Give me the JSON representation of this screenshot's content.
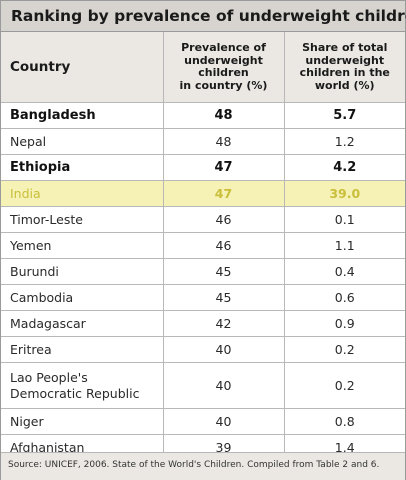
{
  "chart_data": {
    "type": "table",
    "title": "Ranking by prevalence of underweight children",
    "columns": [
      "Country",
      "Prevalence of underweight children in country (%)",
      "Share of total underweight children in the world (%)"
    ],
    "column_header_lines": {
      "prevalence": [
        "Prevalence of",
        "underweight",
        "children",
        "in country (%)"
      ],
      "share": [
        "Share of total",
        "underweight",
        "children in the",
        "world (%)"
      ]
    },
    "rows": [
      {
        "country": "Bangladesh",
        "country_lines": [
          "Bangladesh"
        ],
        "prevalence": "48",
        "share": "5.7",
        "style": "bold"
      },
      {
        "country": "Nepal",
        "country_lines": [
          "Nepal"
        ],
        "prevalence": "48",
        "share": "1.2",
        "style": "normal"
      },
      {
        "country": "Ethiopia",
        "country_lines": [
          "Ethiopia"
        ],
        "prevalence": "47",
        "share": "4.2",
        "style": "bold"
      },
      {
        "country": "India",
        "country_lines": [
          "India"
        ],
        "prevalence": "47",
        "share": "39.0",
        "style": "highlight"
      },
      {
        "country": "Timor-Leste",
        "country_lines": [
          "Timor-Leste"
        ],
        "prevalence": "46",
        "share": "0.1",
        "style": "normal"
      },
      {
        "country": "Yemen",
        "country_lines": [
          "Yemen"
        ],
        "prevalence": "46",
        "share": "1.1",
        "style": "normal"
      },
      {
        "country": "Burundi",
        "country_lines": [
          "Burundi"
        ],
        "prevalence": "45",
        "share": "0.4",
        "style": "normal"
      },
      {
        "country": "Cambodia",
        "country_lines": [
          "Cambodia"
        ],
        "prevalence": "45",
        "share": "0.6",
        "style": "normal"
      },
      {
        "country": "Madagascar",
        "country_lines": [
          "Madagascar"
        ],
        "prevalence": "42",
        "share": "0.9",
        "style": "normal"
      },
      {
        "country": "Eritrea",
        "country_lines": [
          "Eritrea"
        ],
        "prevalence": "40",
        "share": "0.2",
        "style": "normal"
      },
      {
        "country": "Lao People's Democratic Republic",
        "country_lines": [
          "Lao People's",
          "Democratic Republic"
        ],
        "prevalence": "40",
        "share": "0.2",
        "style": "normal"
      },
      {
        "country": "Niger",
        "country_lines": [
          "Niger"
        ],
        "prevalence": "40",
        "share": "0.8",
        "style": "normal"
      },
      {
        "country": "Afghanistan",
        "country_lines": [
          "Afghanistan"
        ],
        "prevalence": "39",
        "share": "1.4",
        "style": "normal"
      }
    ],
    "source": "Source: UNICEF, 2006. State of the World's Children. Compiled from Table 2 and  6.",
    "colors": {
      "header_background": "#d7d4cf",
      "column_header_background": "#ebe8e4",
      "highlight_background": "#f6f1b5",
      "highlight_text": "#c9bf3a"
    }
  }
}
